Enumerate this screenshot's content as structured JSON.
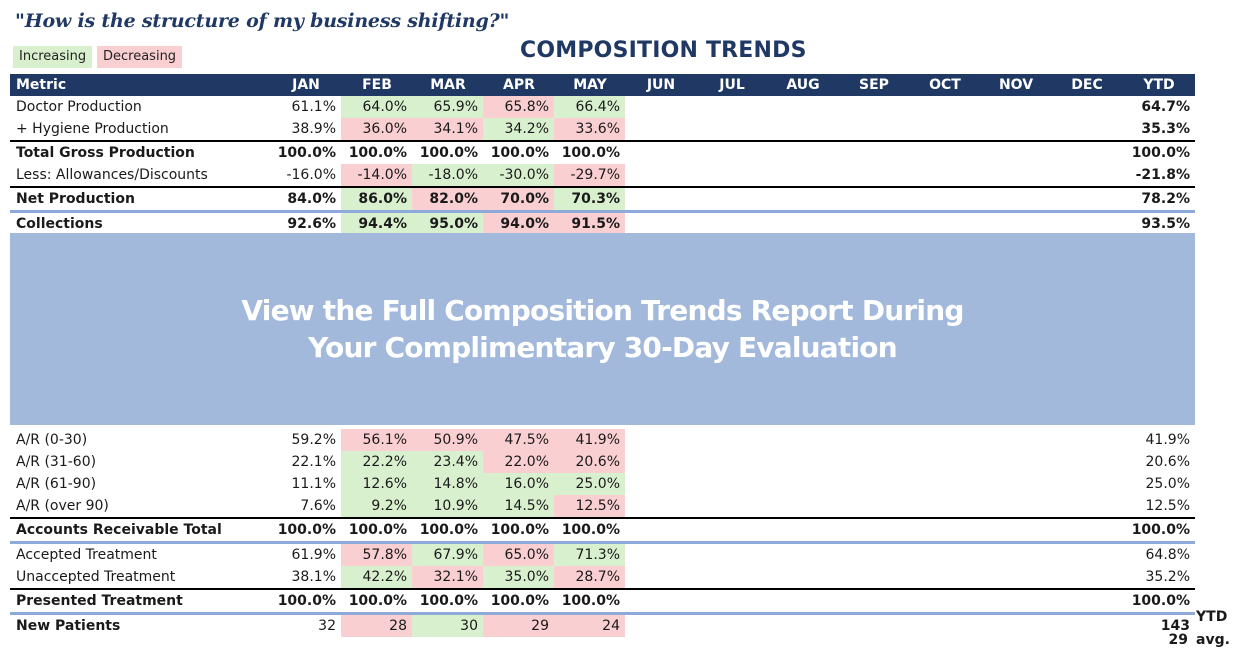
{
  "question": "\"How is the structure of my business shifting?\"",
  "legend": {
    "increasing": "Increasing",
    "decreasing": "Decreasing"
  },
  "title": "COMPOSITION TRENDS",
  "header": {
    "metric": "Metric",
    "months": [
      "JAN",
      "FEB",
      "MAR",
      "APR",
      "MAY",
      "JUN",
      "JUL",
      "AUG",
      "SEP",
      "OCT",
      "NOV",
      "DEC"
    ],
    "ytd": "YTD"
  },
  "colors": {
    "header_bg": "#1f3864",
    "increasing": "#d9f0cf",
    "decreasing": "#f9cfd2",
    "overlay": "#a3b9dc",
    "divider": "#8eaadb"
  },
  "top_rows": [
    {
      "label": "Doctor Production",
      "values": [
        "61.1%",
        "64.0%",
        "65.9%",
        "65.8%",
        "66.4%"
      ],
      "status": [
        "",
        "inc",
        "inc",
        "dec",
        "inc"
      ],
      "ytd": "64.7%",
      "bold": false,
      "ytd_bold": true
    },
    {
      "label": "+ Hygiene Production",
      "values": [
        "38.9%",
        "36.0%",
        "34.1%",
        "34.2%",
        "33.6%"
      ],
      "status": [
        "",
        "dec",
        "dec",
        "inc",
        "dec"
      ],
      "ytd": "35.3%",
      "bold": false,
      "ytd_bold": true
    },
    {
      "label": "Total Gross Production",
      "values": [
        "100.0%",
        "100.0%",
        "100.0%",
        "100.0%",
        "100.0%"
      ],
      "status": [
        "",
        "",
        "",
        "",
        ""
      ],
      "ytd": "100.0%",
      "bold": true,
      "ytd_bold": true,
      "border": "top"
    },
    {
      "label": "Less: Allowances/Discounts",
      "values": [
        "-16.0%",
        "-14.0%",
        "-18.0%",
        "-30.0%",
        "-29.7%"
      ],
      "status": [
        "",
        "dec",
        "inc",
        "inc",
        "dec"
      ],
      "ytd": "-21.8%",
      "bold": false,
      "ytd_bold": true
    },
    {
      "label": "Net Production",
      "values": [
        "84.0%",
        "86.0%",
        "82.0%",
        "70.0%",
        "70.3%"
      ],
      "status": [
        "",
        "inc",
        "dec",
        "dec",
        "inc"
      ],
      "ytd": "78.2%",
      "bold": true,
      "ytd_bold": true,
      "border": "top"
    },
    {
      "label": "Collections",
      "values": [
        "92.6%",
        "94.4%",
        "95.0%",
        "94.0%",
        "91.5%"
      ],
      "status": [
        "",
        "inc",
        "inc",
        "dec",
        "dec"
      ],
      "ytd": "93.5%",
      "bold": true,
      "ytd_bold": true,
      "border": "blue"
    }
  ],
  "overlay": {
    "line1": "View the Full Composition Trends Report During",
    "line2": "Your Complimentary 30-Day Evaluation"
  },
  "bottom_rows": [
    {
      "label": "A/R (0-30)",
      "values": [
        "59.2%",
        "56.1%",
        "50.9%",
        "47.5%",
        "41.9%"
      ],
      "status": [
        "",
        "dec",
        "dec",
        "dec",
        "dec"
      ],
      "ytd": "41.9%",
      "bold": false,
      "ytd_bold": false
    },
    {
      "label": "A/R (31-60)",
      "values": [
        "22.1%",
        "22.2%",
        "23.4%",
        "22.0%",
        "20.6%"
      ],
      "status": [
        "",
        "inc",
        "inc",
        "dec",
        "dec"
      ],
      "ytd": "20.6%",
      "bold": false,
      "ytd_bold": false
    },
    {
      "label": "A/R (61-90)",
      "values": [
        "11.1%",
        "12.6%",
        "14.8%",
        "16.0%",
        "25.0%"
      ],
      "status": [
        "",
        "inc",
        "inc",
        "inc",
        "inc"
      ],
      "ytd": "25.0%",
      "bold": false,
      "ytd_bold": false
    },
    {
      "label": "A/R (over 90)",
      "values": [
        "7.6%",
        "9.2%",
        "10.9%",
        "14.5%",
        "12.5%"
      ],
      "status": [
        "",
        "inc",
        "inc",
        "inc",
        "dec"
      ],
      "ytd": "12.5%",
      "bold": false,
      "ytd_bold": false
    },
    {
      "label": "Accounts Receivable Total",
      "values": [
        "100.0%",
        "100.0%",
        "100.0%",
        "100.0%",
        "100.0%"
      ],
      "status": [
        "",
        "",
        "",
        "",
        ""
      ],
      "ytd": "100.0%",
      "bold": true,
      "ytd_bold": true,
      "border": "top"
    },
    {
      "label": "Accepted Treatment",
      "values": [
        "61.9%",
        "57.8%",
        "67.9%",
        "65.0%",
        "71.3%"
      ],
      "status": [
        "",
        "dec",
        "inc",
        "dec",
        "inc"
      ],
      "ytd": "64.8%",
      "bold": false,
      "ytd_bold": false,
      "border": "blue"
    },
    {
      "label": "Unaccepted Treatment",
      "values": [
        "38.1%",
        "42.2%",
        "32.1%",
        "35.0%",
        "28.7%"
      ],
      "status": [
        "",
        "inc",
        "dec",
        "inc",
        "dec"
      ],
      "ytd": "35.2%",
      "bold": false,
      "ytd_bold": false
    },
    {
      "label": "Presented Treatment",
      "values": [
        "100.0%",
        "100.0%",
        "100.0%",
        "100.0%",
        "100.0%"
      ],
      "status": [
        "",
        "",
        "",
        "",
        ""
      ],
      "ytd": "100.0%",
      "bold": true,
      "ytd_bold": true,
      "border": "top"
    },
    {
      "label": "New Patients",
      "values": [
        "32",
        "28",
        "30",
        "29",
        "24"
      ],
      "status": [
        "",
        "dec",
        "inc",
        "dec",
        "dec"
      ],
      "ytd": "143",
      "bold": false,
      "label_bold": true,
      "ytd_bold": true,
      "border": "blue"
    }
  ],
  "ytd_suffix": "YTD",
  "avg": {
    "value": "29",
    "label": "avg."
  }
}
